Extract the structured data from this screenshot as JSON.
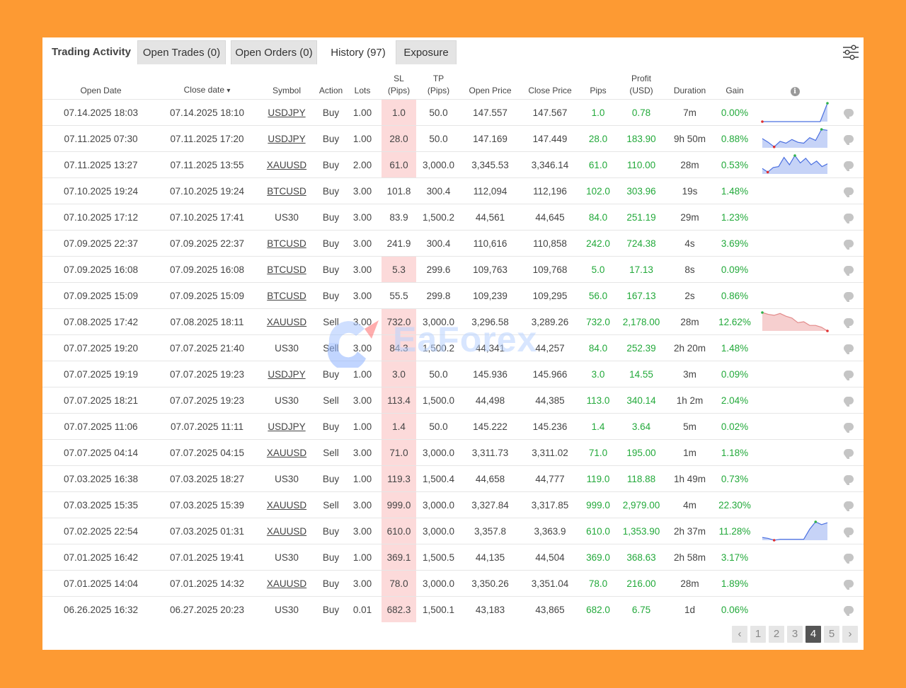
{
  "tabs": {
    "title": "Trading Activity",
    "items": [
      {
        "label": "Open Trades",
        "count": "(0)"
      },
      {
        "label": "Open Orders",
        "count": "(0)"
      },
      {
        "label": "History",
        "count": "(97)"
      },
      {
        "label": "Exposure",
        "count": ""
      }
    ],
    "active": "History"
  },
  "icons": {
    "settings": "sliders-icon",
    "info": "info-icon",
    "comment": "comment-icon"
  },
  "colors": {
    "positive": "#22a93a",
    "sl_highlight": "#fcdada",
    "spark_line": "#4a6fe0",
    "spark_fill_up": "#c6d3f7",
    "spark_fill_down": "#f6cfcf"
  },
  "columns": {
    "open_date": "Open Date",
    "close_date": "Close date",
    "sort_marker": "▾",
    "symbol": "Symbol",
    "action": "Action",
    "lots": "Lots",
    "sl_1": "SL",
    "sl_2": "(Pips)",
    "tp_1": "TP",
    "tp_2": "(Pips)",
    "open_price": "Open Price",
    "close_price": "Close Price",
    "pips": "Pips",
    "profit_1": "Profit",
    "profit_2": "(USD)",
    "duration": "Duration",
    "gain": "Gain",
    "info": "i"
  },
  "rows": [
    {
      "open": "07.14.2025 18:03",
      "close": "07.14.2025 18:10",
      "symbol": "USDJPY",
      "link": true,
      "action": "Buy",
      "lots": "1.00",
      "sl": "1.0",
      "sl_hl": true,
      "tp": "50.0",
      "op": "147.557",
      "cp": "147.567",
      "pips": "1.0",
      "profit": "0.78",
      "duration": "7m",
      "gain": "0.00%",
      "spark": {
        "values": [
          0,
          0,
          0,
          0,
          0,
          0,
          0,
          0,
          0,
          1
        ],
        "dir": "up"
      }
    },
    {
      "open": "07.11.2025 07:30",
      "close": "07.11.2025 17:20",
      "symbol": "USDJPY",
      "link": true,
      "action": "Buy",
      "lots": "1.00",
      "sl": "28.0",
      "sl_hl": true,
      "tp": "50.0",
      "op": "147.169",
      "cp": "147.449",
      "pips": "28.0",
      "profit": "183.90",
      "duration": "9h 50m",
      "gain": "0.88%",
      "spark": {
        "values": [
          0.5,
          0.3,
          0.05,
          0.35,
          0.25,
          0.45,
          0.3,
          0.25,
          0.55,
          0.4,
          1,
          0.95
        ],
        "dir": "up"
      }
    },
    {
      "open": "07.11.2025 13:27",
      "close": "07.11.2025 13:55",
      "symbol": "XAUUSD",
      "link": true,
      "action": "Buy",
      "lots": "2.00",
      "sl": "61.0",
      "sl_hl": true,
      "tp": "3,000.0",
      "op": "3,345.53",
      "cp": "3,346.14",
      "pips": "61.0",
      "profit": "110.00",
      "duration": "28m",
      "gain": "0.53%",
      "spark": {
        "values": [
          0.3,
          0.1,
          0.35,
          0.4,
          0.9,
          0.5,
          1,
          0.6,
          0.85,
          0.5,
          0.7,
          0.4,
          0.55
        ],
        "dir": "up"
      }
    },
    {
      "open": "07.10.2025 19:24",
      "close": "07.10.2025 19:24",
      "symbol": "BTCUSD",
      "link": true,
      "action": "Buy",
      "lots": "3.00",
      "sl": "101.8",
      "sl_hl": false,
      "tp": "300.4",
      "op": "112,094",
      "cp": "112,196",
      "pips": "102.0",
      "profit": "303.96",
      "duration": "19s",
      "gain": "1.48%",
      "spark": null
    },
    {
      "open": "07.10.2025 17:12",
      "close": "07.10.2025 17:41",
      "symbol": "US30",
      "link": false,
      "action": "Buy",
      "lots": "3.00",
      "sl": "83.9",
      "sl_hl": false,
      "tp": "1,500.2",
      "op": "44,561",
      "cp": "44,645",
      "pips": "84.0",
      "profit": "251.19",
      "duration": "29m",
      "gain": "1.23%",
      "spark": null
    },
    {
      "open": "07.09.2025 22:37",
      "close": "07.09.2025 22:37",
      "symbol": "BTCUSD",
      "link": true,
      "action": "Buy",
      "lots": "3.00",
      "sl": "241.9",
      "sl_hl": false,
      "tp": "300.4",
      "op": "110,616",
      "cp": "110,858",
      "pips": "242.0",
      "profit": "724.38",
      "duration": "4s",
      "gain": "3.69%",
      "spark": null
    },
    {
      "open": "07.09.2025 16:08",
      "close": "07.09.2025 16:08",
      "symbol": "BTCUSD",
      "link": true,
      "action": "Buy",
      "lots": "3.00",
      "sl": "5.3",
      "sl_hl": true,
      "tp": "299.6",
      "op": "109,763",
      "cp": "109,768",
      "pips": "5.0",
      "profit": "17.13",
      "duration": "8s",
      "gain": "0.09%",
      "spark": null
    },
    {
      "open": "07.09.2025 15:09",
      "close": "07.09.2025 15:09",
      "symbol": "BTCUSD",
      "link": true,
      "action": "Buy",
      "lots": "3.00",
      "sl": "55.5",
      "sl_hl": false,
      "tp": "299.8",
      "op": "109,239",
      "cp": "109,295",
      "pips": "56.0",
      "profit": "167.13",
      "duration": "2s",
      "gain": "0.86%",
      "spark": null
    },
    {
      "open": "07.08.2025 17:42",
      "close": "07.08.2025 18:11",
      "symbol": "XAUUSD",
      "link": true,
      "action": "Sell",
      "lots": "3.00",
      "sl": "732.0",
      "sl_hl": true,
      "tp": "3,000.0",
      "op": "3,296.58",
      "cp": "3,289.26",
      "pips": "732.0",
      "profit": "2,178.00",
      "duration": "28m",
      "gain": "12.62%",
      "spark": {
        "values": [
          1,
          0.9,
          0.85,
          0.95,
          0.8,
          0.7,
          0.45,
          0.5,
          0.3,
          0.3,
          0.2,
          0
        ],
        "dir": "down"
      }
    },
    {
      "open": "07.07.2025 19:20",
      "close": "07.07.2025 21:40",
      "symbol": "US30",
      "link": false,
      "action": "Sell",
      "lots": "3.00",
      "sl": "84.3",
      "sl_hl": true,
      "tp": "1,500.2",
      "op": "44,341",
      "cp": "44,257",
      "pips": "84.0",
      "profit": "252.39",
      "duration": "2h 20m",
      "gain": "1.48%",
      "spark": null
    },
    {
      "open": "07.07.2025 19:19",
      "close": "07.07.2025 19:23",
      "symbol": "USDJPY",
      "link": true,
      "action": "Buy",
      "lots": "1.00",
      "sl": "3.0",
      "sl_hl": true,
      "tp": "50.0",
      "op": "145.936",
      "cp": "145.966",
      "pips": "3.0",
      "profit": "14.55",
      "duration": "3m",
      "gain": "0.09%",
      "spark": null
    },
    {
      "open": "07.07.2025 18:21",
      "close": "07.07.2025 19:23",
      "symbol": "US30",
      "link": false,
      "action": "Sell",
      "lots": "3.00",
      "sl": "113.4",
      "sl_hl": true,
      "tp": "1,500.0",
      "op": "44,498",
      "cp": "44,385",
      "pips": "113.0",
      "profit": "340.14",
      "duration": "1h 2m",
      "gain": "2.04%",
      "spark": null
    },
    {
      "open": "07.07.2025 11:06",
      "close": "07.07.2025 11:11",
      "symbol": "USDJPY",
      "link": true,
      "action": "Buy",
      "lots": "1.00",
      "sl": "1.4",
      "sl_hl": true,
      "tp": "50.0",
      "op": "145.222",
      "cp": "145.236",
      "pips": "1.4",
      "profit": "3.64",
      "duration": "5m",
      "gain": "0.02%",
      "spark": null
    },
    {
      "open": "07.07.2025 04:14",
      "close": "07.07.2025 04:15",
      "symbol": "XAUUSD",
      "link": true,
      "action": "Sell",
      "lots": "3.00",
      "sl": "71.0",
      "sl_hl": true,
      "tp": "3,000.0",
      "op": "3,311.73",
      "cp": "3,311.02",
      "pips": "71.0",
      "profit": "195.00",
      "duration": "1m",
      "gain": "1.18%",
      "spark": null
    },
    {
      "open": "07.03.2025 16:38",
      "close": "07.03.2025 18:27",
      "symbol": "US30",
      "link": false,
      "action": "Buy",
      "lots": "1.00",
      "sl": "119.3",
      "sl_hl": true,
      "tp": "1,500.4",
      "op": "44,658",
      "cp": "44,777",
      "pips": "119.0",
      "profit": "118.88",
      "duration": "1h 49m",
      "gain": "0.73%",
      "spark": null
    },
    {
      "open": "07.03.2025 15:35",
      "close": "07.03.2025 15:39",
      "symbol": "XAUUSD",
      "link": true,
      "action": "Sell",
      "lots": "3.00",
      "sl": "999.0",
      "sl_hl": true,
      "tp": "3,000.0",
      "op": "3,327.84",
      "cp": "3,317.85",
      "pips": "999.0",
      "profit": "2,979.00",
      "duration": "4m",
      "gain": "22.30%",
      "spark": null
    },
    {
      "open": "07.02.2025 22:54",
      "close": "07.03.2025 01:31",
      "symbol": "XAUUSD",
      "link": true,
      "action": "Buy",
      "lots": "3.00",
      "sl": "610.0",
      "sl_hl": true,
      "tp": "3,000.0",
      "op": "3,357.8",
      "cp": "3,363.9",
      "pips": "610.0",
      "profit": "1,353.90",
      "duration": "2h 37m",
      "gain": "11.28%",
      "spark": {
        "values": [
          0.15,
          0.1,
          0,
          0.05,
          0.05,
          0.05,
          0.05,
          0.05,
          0.6,
          1,
          0.85,
          0.95
        ],
        "dir": "up"
      }
    },
    {
      "open": "07.01.2025 16:42",
      "close": "07.01.2025 19:41",
      "symbol": "US30",
      "link": false,
      "action": "Buy",
      "lots": "1.00",
      "sl": "369.1",
      "sl_hl": true,
      "tp": "1,500.5",
      "op": "44,135",
      "cp": "44,504",
      "pips": "369.0",
      "profit": "368.63",
      "duration": "2h 58m",
      "gain": "3.17%",
      "spark": null
    },
    {
      "open": "07.01.2025 14:04",
      "close": "07.01.2025 14:32",
      "symbol": "XAUUSD",
      "link": true,
      "action": "Buy",
      "lots": "3.00",
      "sl": "78.0",
      "sl_hl": true,
      "tp": "3,000.0",
      "op": "3,350.26",
      "cp": "3,351.04",
      "pips": "78.0",
      "profit": "216.00",
      "duration": "28m",
      "gain": "1.89%",
      "spark": null
    },
    {
      "open": "06.26.2025 16:32",
      "close": "06.27.2025 20:23",
      "symbol": "US30",
      "link": false,
      "action": "Buy",
      "lots": "0.01",
      "sl": "682.3",
      "sl_hl": true,
      "tp": "1,500.1",
      "op": "43,183",
      "cp": "43,865",
      "pips": "682.0",
      "profit": "6.75",
      "duration": "1d",
      "gain": "0.06%",
      "spark": null
    }
  ],
  "pagination": {
    "prev": "‹",
    "pages": [
      "1",
      "2",
      "3",
      "4",
      "5"
    ],
    "current": "4",
    "next": "›"
  },
  "watermark": {
    "text": "EaForex"
  }
}
